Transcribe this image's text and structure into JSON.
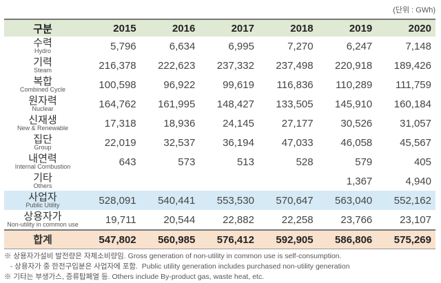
{
  "unit": "(단위 : GWh)",
  "header": {
    "label": "구분",
    "years": [
      "2015",
      "2016",
      "2017",
      "2018",
      "2019",
      "2020"
    ]
  },
  "rows": [
    {
      "ko": "수력",
      "en": "Hydro",
      "values": [
        "5,796",
        "6,634",
        "6,995",
        "7,270",
        "6,247",
        "7,148"
      ]
    },
    {
      "ko": "기력",
      "en": "Steam",
      "values": [
        "216,378",
        "222,623",
        "237,332",
        "237,498",
        "220,918",
        "189,426"
      ]
    },
    {
      "ko": "복합",
      "en": "Combined Cycle",
      "values": [
        "100,598",
        "96,922",
        "99,619",
        "116,836",
        "110,289",
        "111,759"
      ]
    },
    {
      "ko": "원자력",
      "en": "Nuclear",
      "values": [
        "164,762",
        "161,995",
        "148,427",
        "133,505",
        "145,910",
        "160,184"
      ]
    },
    {
      "ko": "신재생",
      "en": "New & Renewable",
      "values": [
        "17,318",
        "18,936",
        "24,145",
        "27,177",
        "30,526",
        "31,057"
      ]
    },
    {
      "ko": "집단",
      "en": "Group",
      "values": [
        "22,019",
        "32,537",
        "36,194",
        "47,033",
        "46,058",
        "45,567"
      ]
    },
    {
      "ko": "내연력",
      "en": "Internal Combustion",
      "values": [
        "643",
        "573",
        "513",
        "528",
        "579",
        "405"
      ]
    },
    {
      "ko": "기타",
      "en": "Others",
      "values": [
        "",
        "",
        "",
        "",
        "1,367",
        "4,940"
      ]
    },
    {
      "ko": "사업자",
      "en": "Public Utility",
      "values": [
        "528,091",
        "540,441",
        "553,530",
        "570,647",
        "563,040",
        "552,162"
      ]
    },
    {
      "ko": "상용자가",
      "en": "Non-utility in common use",
      "values": [
        "19,711",
        "20,544",
        "22,882",
        "22,258",
        "23,766",
        "23,107"
      ]
    }
  ],
  "total": {
    "ko": "합계",
    "values": [
      "547,802",
      "560,985",
      "576,412",
      "592,905",
      "586,806",
      "575,269"
    ]
  },
  "notes": [
    "※ 상용자가설비 발전량은 자체소비량임.  Gross generation of non-utility in common use is self-consumption.",
    "   - 상용자가 중 한전구입분은 사업자에 포함.  Public utility generation includes purchased non-utility generation",
    "※ 기타는 부생가스, 증류탑폐열 등.  Others include By-product gas, waste heat, etc."
  ],
  "colors": {
    "header": "#dfe9d3",
    "public_utility": "#d6eaf6",
    "total": "#f8e1cd"
  }
}
